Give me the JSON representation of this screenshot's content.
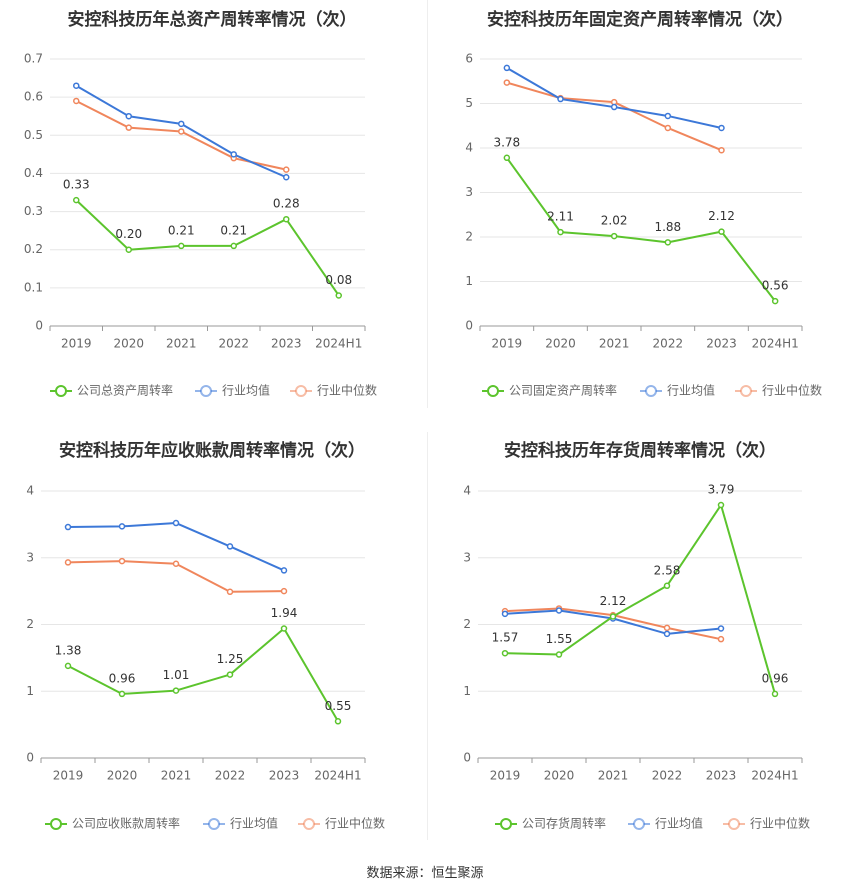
{
  "source_label": "数据来源：恒生聚源",
  "colors": {
    "company": "#5cc42d",
    "avg": "#3c78d8",
    "median": "#f0865c"
  },
  "chart_data": [
    {
      "type": "line",
      "title": "安控科技历年总资产周转率情况（次）",
      "categories": [
        "2019",
        "2020",
        "2021",
        "2022",
        "2023",
        "2024H1"
      ],
      "ylim": [
        0,
        0.7
      ],
      "yticks": [
        "0",
        "0.1",
        "0.2",
        "0.3",
        "0.4",
        "0.5",
        "0.6",
        "0.7"
      ],
      "grid": true,
      "legend": "bottom",
      "series": [
        {
          "name": "公司总资产周转率",
          "values": [
            0.33,
            0.2,
            0.21,
            0.21,
            0.28,
            0.08
          ],
          "labels": [
            "0.33",
            "0.20",
            "0.21",
            "0.21",
            "0.28",
            "0.08"
          ]
        },
        {
          "name": "行业均值",
          "values": [
            0.63,
            0.55,
            0.53,
            0.45,
            0.39,
            null
          ]
        },
        {
          "name": "行业中位数",
          "values": [
            0.59,
            0.52,
            0.51,
            0.44,
            0.41,
            null
          ]
        }
      ]
    },
    {
      "type": "line",
      "title": "安控科技历年固定资产周转率情况（次）",
      "categories": [
        "2019",
        "2020",
        "2021",
        "2022",
        "2023",
        "2024H1"
      ],
      "ylim": [
        0,
        6
      ],
      "yticks": [
        "0",
        "1",
        "2",
        "3",
        "4",
        "5",
        "6"
      ],
      "grid": true,
      "legend": "bottom",
      "series": [
        {
          "name": "公司固定资产周转率",
          "values": [
            3.78,
            2.11,
            2.02,
            1.88,
            2.12,
            0.56
          ],
          "labels": [
            "3.78",
            "2.11",
            "2.02",
            "1.88",
            "2.12",
            "0.56"
          ]
        },
        {
          "name": "行业均值",
          "values": [
            5.8,
            5.1,
            4.92,
            4.72,
            4.45,
            null
          ]
        },
        {
          "name": "行业中位数",
          "values": [
            5.47,
            5.12,
            5.03,
            4.45,
            3.95,
            null
          ]
        }
      ]
    },
    {
      "type": "line",
      "title": "安控科技历年应收账款周转率情况（次）",
      "categories": [
        "2019",
        "2020",
        "2021",
        "2022",
        "2023",
        "2024H1"
      ],
      "ylim": [
        0,
        4
      ],
      "yticks": [
        "0",
        "1",
        "2",
        "3",
        "4"
      ],
      "grid": true,
      "legend": "bottom",
      "series": [
        {
          "name": "公司应收账款周转率",
          "values": [
            1.38,
            0.96,
            1.01,
            1.25,
            1.94,
            0.55
          ],
          "labels": [
            "1.38",
            "0.96",
            "1.01",
            "1.25",
            "1.94",
            "0.55"
          ]
        },
        {
          "name": "行业均值",
          "values": [
            3.46,
            3.47,
            3.52,
            3.17,
            2.81,
            null
          ]
        },
        {
          "name": "行业中位数",
          "values": [
            2.93,
            2.95,
            2.91,
            2.49,
            2.5,
            null
          ]
        }
      ]
    },
    {
      "type": "line",
      "title": "安控科技历年存货周转率情况（次）",
      "categories": [
        "2019",
        "2020",
        "2021",
        "2022",
        "2023",
        "2024H1"
      ],
      "ylim": [
        0,
        4
      ],
      "yticks": [
        "0",
        "1",
        "2",
        "3",
        "4"
      ],
      "grid": true,
      "legend": "bottom",
      "series": [
        {
          "name": "公司存货周转率",
          "values": [
            1.57,
            1.55,
            2.12,
            2.58,
            3.79,
            0.96
          ],
          "labels": [
            "1.57",
            "1.55",
            "2.12",
            "2.58",
            "3.79",
            "0.96"
          ]
        },
        {
          "name": "行业均值",
          "values": [
            2.16,
            2.21,
            2.09,
            1.86,
            1.94,
            null
          ]
        },
        {
          "name": "行业中位数",
          "values": [
            2.2,
            2.24,
            2.14,
            1.95,
            1.78,
            null
          ]
        }
      ]
    }
  ]
}
